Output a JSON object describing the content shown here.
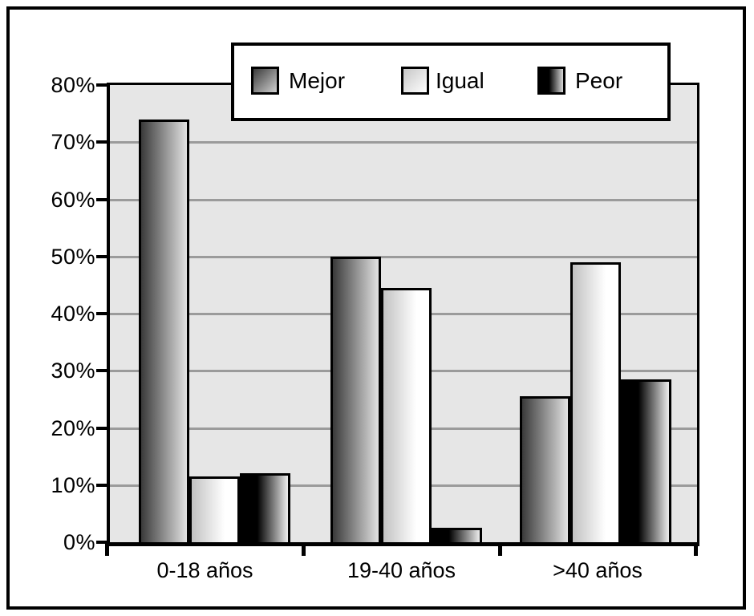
{
  "chart_data": {
    "type": "bar",
    "title": "",
    "xlabel": "",
    "ylabel": "",
    "categories": [
      "0-18 años",
      "19-40 años",
      ">40 años"
    ],
    "series": [
      {
        "name": "Mejor",
        "values": [
          74,
          50,
          25.5
        ]
      },
      {
        "name": "Igual",
        "values": [
          11.5,
          44.5,
          49
        ]
      },
      {
        "name": "Peor",
        "values": [
          12,
          2.5,
          28.5
        ]
      }
    ],
    "values_unit": "%",
    "ylim": [
      0,
      80
    ],
    "ytick_step": 10,
    "ytick_labels": [
      "0%",
      "10%",
      "20%",
      "30%",
      "40%",
      "50%",
      "60%",
      "70%",
      "80%"
    ],
    "grid": "horizontal",
    "legend_position": "top-center"
  },
  "legend": {
    "items": [
      {
        "label": "Mejor",
        "swatch": "dark-gray-gradient"
      },
      {
        "label": "Igual",
        "swatch": "white-gradient"
      },
      {
        "label": "Peor",
        "swatch": "black-gradient"
      }
    ]
  },
  "colors": {
    "figure_background": "#ffffff",
    "frame_border": "#000000",
    "plot_background": "#e6e6e6",
    "gridline": "#9b9b9b",
    "bar_border": "#000000",
    "mejor_gradient_start": "#3a3a3a",
    "mejor_gradient_end": "#e2e2e2",
    "igual_gradient_start": "#c2c2c2",
    "igual_gradient_end": "#ffffff",
    "peor_gradient_start": "#000000",
    "peor_gradient_end": "#ededed"
  }
}
